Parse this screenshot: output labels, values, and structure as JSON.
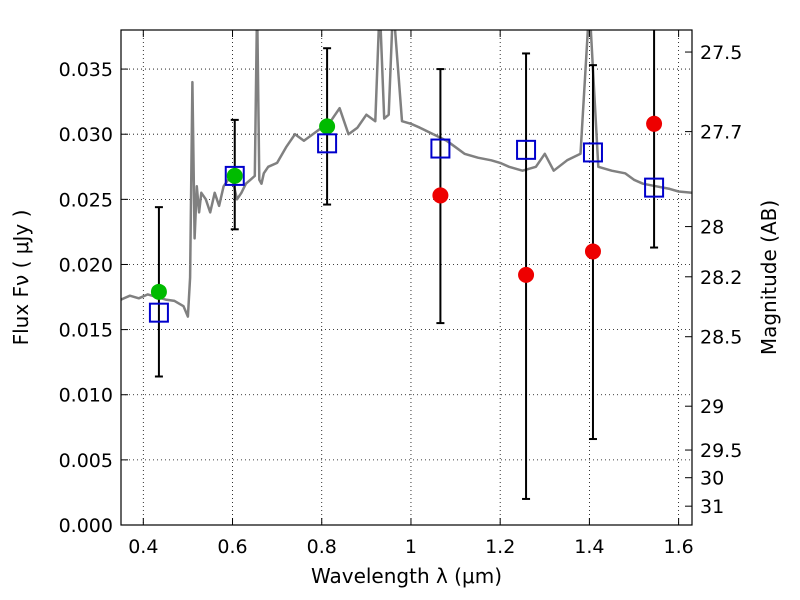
{
  "chart_data": {
    "type": "scatter",
    "xlabel": "Wavelength  λ (μm)",
    "ylabel": "Flux  Fν  ( μJy )",
    "y2label": "Magnitude (AB)",
    "xlim": [
      0.35,
      1.63
    ],
    "ylim": [
      0.0,
      0.038
    ],
    "grid": true,
    "x_ticks": [
      0.4,
      0.6,
      0.8,
      1.0,
      1.2,
      1.4,
      1.6
    ],
    "x_tick_labels": [
      "0.4",
      "0.6",
      "0.8",
      "1",
      "1.2",
      "1.4",
      "1.6"
    ],
    "y_ticks": [
      0.0,
      0.005,
      0.01,
      0.015,
      0.02,
      0.025,
      0.03,
      0.035
    ],
    "y_tick_labels": [
      "0.000",
      "0.005",
      "0.010",
      "0.015",
      "0.020",
      "0.025",
      "0.030",
      "0.035"
    ],
    "y2_ticks": [
      27.5,
      27.7,
      28,
      28.2,
      28.5,
      29,
      29.5,
      30,
      31
    ],
    "y2_tick_labels": [
      "27.5",
      "27.7",
      "28",
      "28.2",
      "28.5",
      "29",
      "29.5",
      "30",
      "31"
    ],
    "template_spectrum": {
      "color": "#808080",
      "x": [
        0.35,
        0.37,
        0.39,
        0.41,
        0.43,
        0.45,
        0.47,
        0.49,
        0.5,
        0.505,
        0.51,
        0.515,
        0.52,
        0.525,
        0.53,
        0.54,
        0.55,
        0.56,
        0.57,
        0.58,
        0.59,
        0.6,
        0.61,
        0.62,
        0.63,
        0.64,
        0.65,
        0.655,
        0.66,
        0.665,
        0.67,
        0.68,
        0.7,
        0.72,
        0.74,
        0.76,
        0.78,
        0.8,
        0.82,
        0.84,
        0.86,
        0.88,
        0.9,
        0.92,
        0.93,
        0.94,
        0.95,
        0.96,
        0.98,
        1.0,
        1.02,
        1.05,
        1.08,
        1.1,
        1.12,
        1.15,
        1.18,
        1.2,
        1.22,
        1.25,
        1.28,
        1.3,
        1.32,
        1.35,
        1.38,
        1.4,
        1.42,
        1.45,
        1.48,
        1.5,
        1.52,
        1.55,
        1.58,
        1.6,
        1.63
      ],
      "y": [
        0.0173,
        0.0176,
        0.0174,
        0.0177,
        0.0175,
        0.0173,
        0.0172,
        0.0168,
        0.016,
        0.019,
        0.034,
        0.022,
        0.026,
        0.024,
        0.0255,
        0.025,
        0.024,
        0.0255,
        0.0245,
        0.026,
        0.0265,
        0.0265,
        0.025,
        0.0255,
        0.0262,
        0.0265,
        0.0268,
        0.04,
        0.0265,
        0.0262,
        0.027,
        0.0275,
        0.0278,
        0.029,
        0.03,
        0.0295,
        0.03,
        0.0305,
        0.031,
        0.032,
        0.03,
        0.0305,
        0.0315,
        0.031,
        0.04,
        0.0312,
        0.0315,
        0.04,
        0.031,
        0.0308,
        0.0305,
        0.03,
        0.0295,
        0.029,
        0.0285,
        0.0282,
        0.028,
        0.0278,
        0.0275,
        0.0272,
        0.0275,
        0.0285,
        0.0272,
        0.028,
        0.0285,
        0.04,
        0.0275,
        0.0272,
        0.027,
        0.0265,
        0.0262,
        0.026,
        0.0258,
        0.0256,
        0.0255
      ]
    },
    "series": [
      {
        "marker": "circle",
        "color": "#00bb00",
        "x": [
          0.435,
          0.605,
          0.812
        ],
        "y": [
          0.0179,
          0.0268,
          0.0306
        ]
      },
      {
        "marker": "circle",
        "color": "#ee0000",
        "x": [
          1.066,
          1.258,
          1.408,
          1.545
        ],
        "y": [
          0.0253,
          0.0192,
          0.021,
          0.0308
        ]
      },
      {
        "marker": "open-square",
        "color": "#0000cc",
        "x": [
          0.435,
          0.605,
          0.812,
          1.066,
          1.258,
          1.408,
          1.545
        ],
        "y": [
          0.0163,
          0.0268,
          0.0293,
          0.0289,
          0.0288,
          0.0286,
          0.0259
        ],
        "err_low": [
          0.0114,
          0.0227,
          0.0246,
          0.0155,
          0.002,
          0.0066,
          0.0213
        ],
        "err_high": [
          0.0244,
          0.0311,
          0.0366,
          0.035,
          0.0362,
          0.0353,
          0.0392
        ]
      }
    ]
  }
}
